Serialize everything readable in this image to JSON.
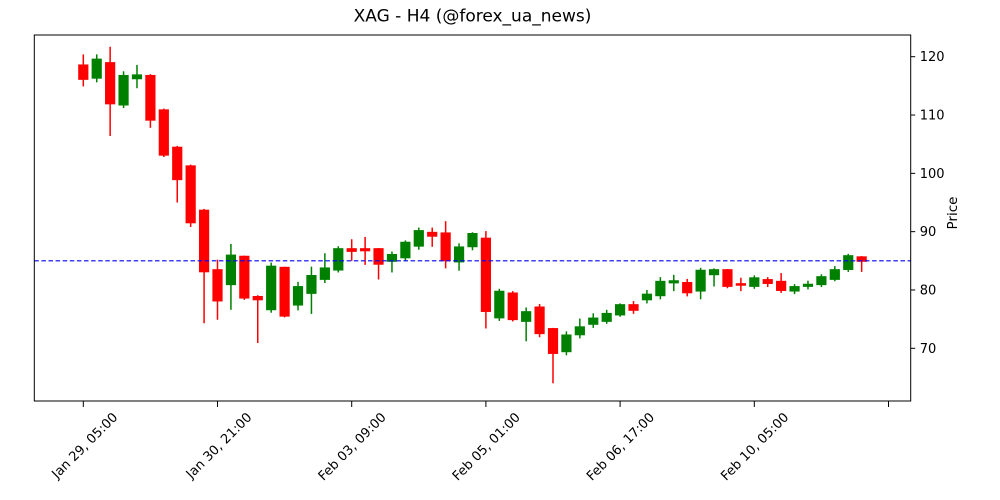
{
  "chart_data": {
    "type": "candlestick",
    "title": "XAG - H4 (@forex_ua_news)",
    "ylabel": "Price",
    "xlabel": "",
    "grid": false,
    "legend": null,
    "y_ticks": [
      70,
      80,
      90,
      100,
      110,
      120
    ],
    "ylim": [
      61,
      124
    ],
    "x_tick_labels": [
      "Jan 29, 05:00",
      "Jan 30, 21:00",
      "Feb 03, 09:00",
      "Feb 05, 01:00",
      "Feb 06, 17:00",
      "Feb 10, 05:00",
      ""
    ],
    "x_tick_candle_indices": [
      0,
      10,
      20,
      30,
      40,
      50,
      60
    ],
    "hline": {
      "value": 85,
      "color": "#0000ff",
      "style": "dashed"
    },
    "colors": {
      "up": "#008000",
      "down": "#ff0000",
      "axis": "#000000",
      "background": "#ffffff"
    },
    "candle_format": [
      "open",
      "high",
      "low",
      "close"
    ],
    "candles": [
      [
        118.6,
        120.4,
        114.9,
        116.1
      ],
      [
        116.3,
        120.4,
        115.6,
        119.6
      ],
      [
        119.0,
        121.7,
        106.4,
        111.9
      ],
      [
        111.7,
        117.5,
        111.2,
        116.8
      ],
      [
        116.2,
        118.6,
        114.6,
        116.9
      ],
      [
        116.8,
        117.0,
        107.8,
        109.1
      ],
      [
        110.9,
        111.1,
        102.8,
        103.1
      ],
      [
        104.5,
        104.7,
        95.0,
        98.9
      ],
      [
        101.3,
        101.5,
        90.8,
        91.5
      ],
      [
        93.7,
        93.9,
        74.3,
        83.1
      ],
      [
        83.5,
        85.2,
        74.9,
        78.1
      ],
      [
        80.9,
        87.9,
        76.6,
        86.0
      ],
      [
        85.8,
        85.9,
        78.3,
        78.6
      ],
      [
        78.9,
        79.1,
        70.9,
        78.3
      ],
      [
        76.6,
        84.7,
        76.1,
        84.1
      ],
      [
        83.9,
        84.0,
        75.3,
        75.5
      ],
      [
        77.4,
        81.4,
        76.5,
        80.6
      ],
      [
        79.4,
        84.0,
        75.9,
        82.5
      ],
      [
        81.8,
        86.3,
        81.2,
        83.8
      ],
      [
        83.4,
        87.5,
        83.0,
        87.1
      ],
      [
        87.1,
        88.7,
        85.0,
        86.6
      ],
      [
        87.1,
        89.1,
        84.3,
        86.7
      ],
      [
        87.1,
        87.2,
        81.8,
        84.4
      ],
      [
        84.9,
        86.6,
        83.0,
        86.1
      ],
      [
        85.5,
        88.5,
        85.0,
        88.2
      ],
      [
        87.5,
        90.7,
        86.9,
        90.2
      ],
      [
        89.9,
        90.7,
        87.4,
        89.2
      ],
      [
        89.8,
        91.8,
        83.7,
        85.0
      ],
      [
        84.8,
        88.0,
        83.3,
        87.4
      ],
      [
        87.4,
        89.9,
        86.8,
        89.7
      ],
      [
        88.9,
        90.1,
        73.4,
        76.3
      ],
      [
        75.2,
        80.2,
        74.7,
        79.8
      ],
      [
        79.5,
        79.8,
        74.6,
        74.9
      ],
      [
        74.6,
        77.0,
        71.2,
        76.3
      ],
      [
        77.1,
        77.6,
        71.9,
        72.5
      ],
      [
        73.4,
        73.5,
        64.0,
        69.1
      ],
      [
        69.4,
        72.9,
        68.8,
        72.3
      ],
      [
        72.3,
        75.1,
        71.7,
        73.7
      ],
      [
        74.1,
        76.0,
        73.5,
        75.2
      ],
      [
        74.6,
        76.6,
        74.2,
        76.0
      ],
      [
        75.7,
        77.7,
        75.4,
        77.5
      ],
      [
        77.5,
        78.1,
        75.9,
        76.5
      ],
      [
        78.3,
        80.0,
        77.7,
        79.3
      ],
      [
        79.0,
        82.2,
        78.4,
        81.5
      ],
      [
        81.2,
        82.6,
        79.8,
        81.6
      ],
      [
        81.3,
        81.9,
        78.9,
        79.5
      ],
      [
        79.8,
        83.8,
        78.4,
        83.4
      ],
      [
        82.6,
        83.7,
        80.6,
        83.5
      ],
      [
        83.5,
        83.6,
        80.3,
        80.6
      ],
      [
        81.1,
        82.1,
        79.8,
        80.8
      ],
      [
        80.6,
        82.5,
        80.2,
        82.1
      ],
      [
        81.8,
        82.2,
        80.5,
        81.1
      ],
      [
        81.5,
        82.9,
        79.5,
        79.9
      ],
      [
        79.8,
        81.0,
        79.3,
        80.6
      ],
      [
        80.6,
        81.6,
        80.1,
        81.0
      ],
      [
        80.9,
        82.7,
        80.5,
        82.3
      ],
      [
        81.8,
        84.1,
        81.5,
        83.5
      ],
      [
        83.5,
        86.2,
        83.1,
        85.9
      ],
      [
        85.7,
        85.8,
        83.1,
        84.9
      ]
    ]
  }
}
